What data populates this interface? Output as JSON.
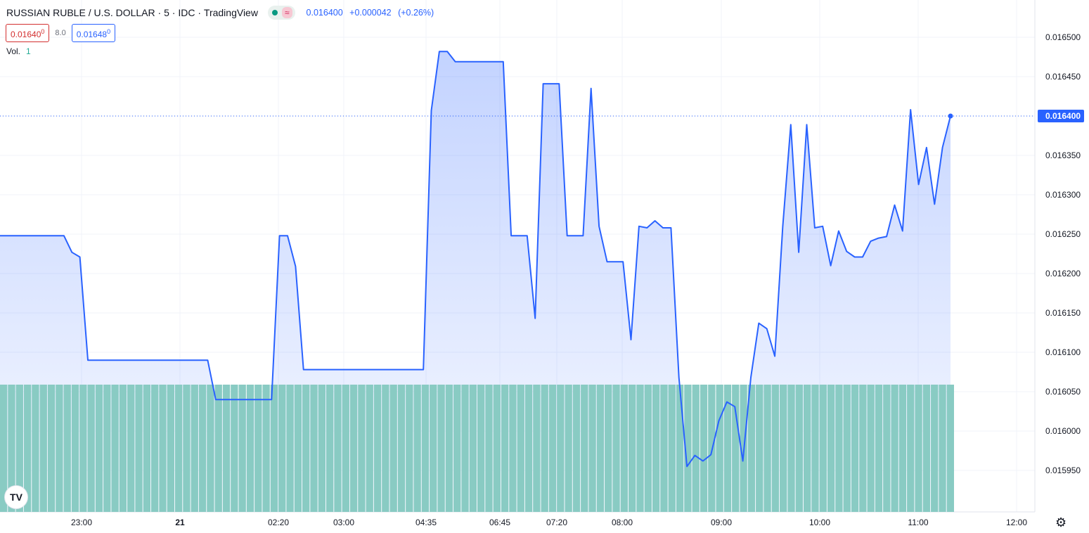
{
  "header": {
    "symbol": "RUSSIAN RUBLE / U.S. DOLLAR",
    "interval": "5",
    "exchange": "IDC",
    "source": "TradingView",
    "market_status_icon": "green-dot-icon",
    "wave_icon": "≈",
    "last": "0.016400",
    "change": "+0.000042",
    "change_pct": "(+0.26%)",
    "bid": "0.01640",
    "bid_sup": "0",
    "spread": "8.0",
    "ask": "0.01648",
    "ask_sup": "0",
    "volume_label": "Vol.",
    "volume_value": "1"
  },
  "logo_text": "TV",
  "settings_icon": "gear-icon",
  "colors": {
    "line": "#2962ff",
    "volume": "#89cbc3",
    "grid": "#f0f3fa",
    "price_label": "#2962ff"
  },
  "chart_data": {
    "type": "area",
    "x_tick_labels": [
      "23:00",
      "21",
      "02:20",
      "03:00",
      "04:35",
      "06:45",
      "07:20",
      "08:00",
      "09:00",
      "10:00",
      "11:00",
      "12:00"
    ],
    "y_tick_labels": [
      "0.016500",
      "0.016450",
      "0.016400",
      "0.016350",
      "0.016300",
      "0.016250",
      "0.016200",
      "0.016150",
      "0.016100",
      "0.016050",
      "0.016000",
      "0.015950"
    ],
    "ylim": [
      0.01591,
      0.01652
    ],
    "last_price": "0.016400",
    "series": [
      {
        "values": [
          0.016248,
          0.016248,
          0.016248,
          0.016248,
          0.016248,
          0.016248,
          0.016248,
          0.016248,
          0.016248,
          0.016227,
          0.016221,
          0.01609,
          0.01609,
          0.01609,
          0.01609,
          0.01609,
          0.01609,
          0.01609,
          0.01609,
          0.01609,
          0.01609,
          0.01609,
          0.01609,
          0.01609,
          0.01609,
          0.01609,
          0.01609,
          0.01604,
          0.01604,
          0.01604,
          0.01604,
          0.01604,
          0.01604,
          0.01604,
          0.01604,
          0.016248,
          0.016248,
          0.016209,
          0.016078,
          0.016078,
          0.016078,
          0.016078,
          0.016078,
          0.016078,
          0.016078,
          0.016078,
          0.016078,
          0.016078,
          0.016078,
          0.016078,
          0.016078,
          0.016078,
          0.016078,
          0.016078,
          0.016407,
          0.016482,
          0.016482,
          0.016469,
          0.016469,
          0.016469,
          0.016469,
          0.016469,
          0.016469,
          0.016469,
          0.016248,
          0.016248,
          0.016248,
          0.016143,
          0.016441,
          0.016441,
          0.016441,
          0.016248,
          0.016248,
          0.016248,
          0.016435,
          0.01626,
          0.016215,
          0.016215,
          0.016215,
          0.016116,
          0.01626,
          0.016258,
          0.016267,
          0.016258,
          0.016258,
          0.016068,
          0.015955,
          0.015969,
          0.015962,
          0.01597,
          0.016013,
          0.016037,
          0.016031,
          0.015962,
          0.016068,
          0.016137,
          0.01613,
          0.016095,
          0.01626,
          0.016389,
          0.016227,
          0.016389,
          0.016258,
          0.01626,
          0.01621,
          0.016254,
          0.016228,
          0.016221,
          0.016221,
          0.016241,
          0.016245,
          0.016247,
          0.016287,
          0.016254,
          0.016408,
          0.016313,
          0.01636,
          0.016288,
          0.01636,
          0.0164
        ]
      }
    ],
    "volume": {
      "label": "Vol.",
      "bar_count": 120,
      "value": 1
    }
  }
}
